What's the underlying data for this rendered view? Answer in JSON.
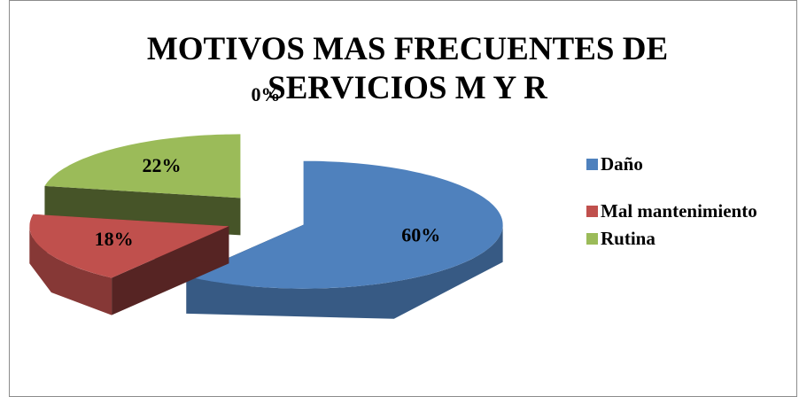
{
  "chart_data": {
    "type": "pie3d",
    "title": "MOTIVOS MAS FRECUENTES DE SERVICIOS M Y R",
    "categories": [
      "Daño",
      "Mal mantenimiento",
      "Rutina",
      null
    ],
    "values": [
      60,
      18,
      22,
      0
    ],
    "value_labels": [
      "60%",
      "18%",
      "22%",
      "0%"
    ],
    "colors": [
      "#4f81bd",
      "#c0504d",
      "#9bbb59",
      "#8064a2"
    ],
    "legend": "right"
  }
}
